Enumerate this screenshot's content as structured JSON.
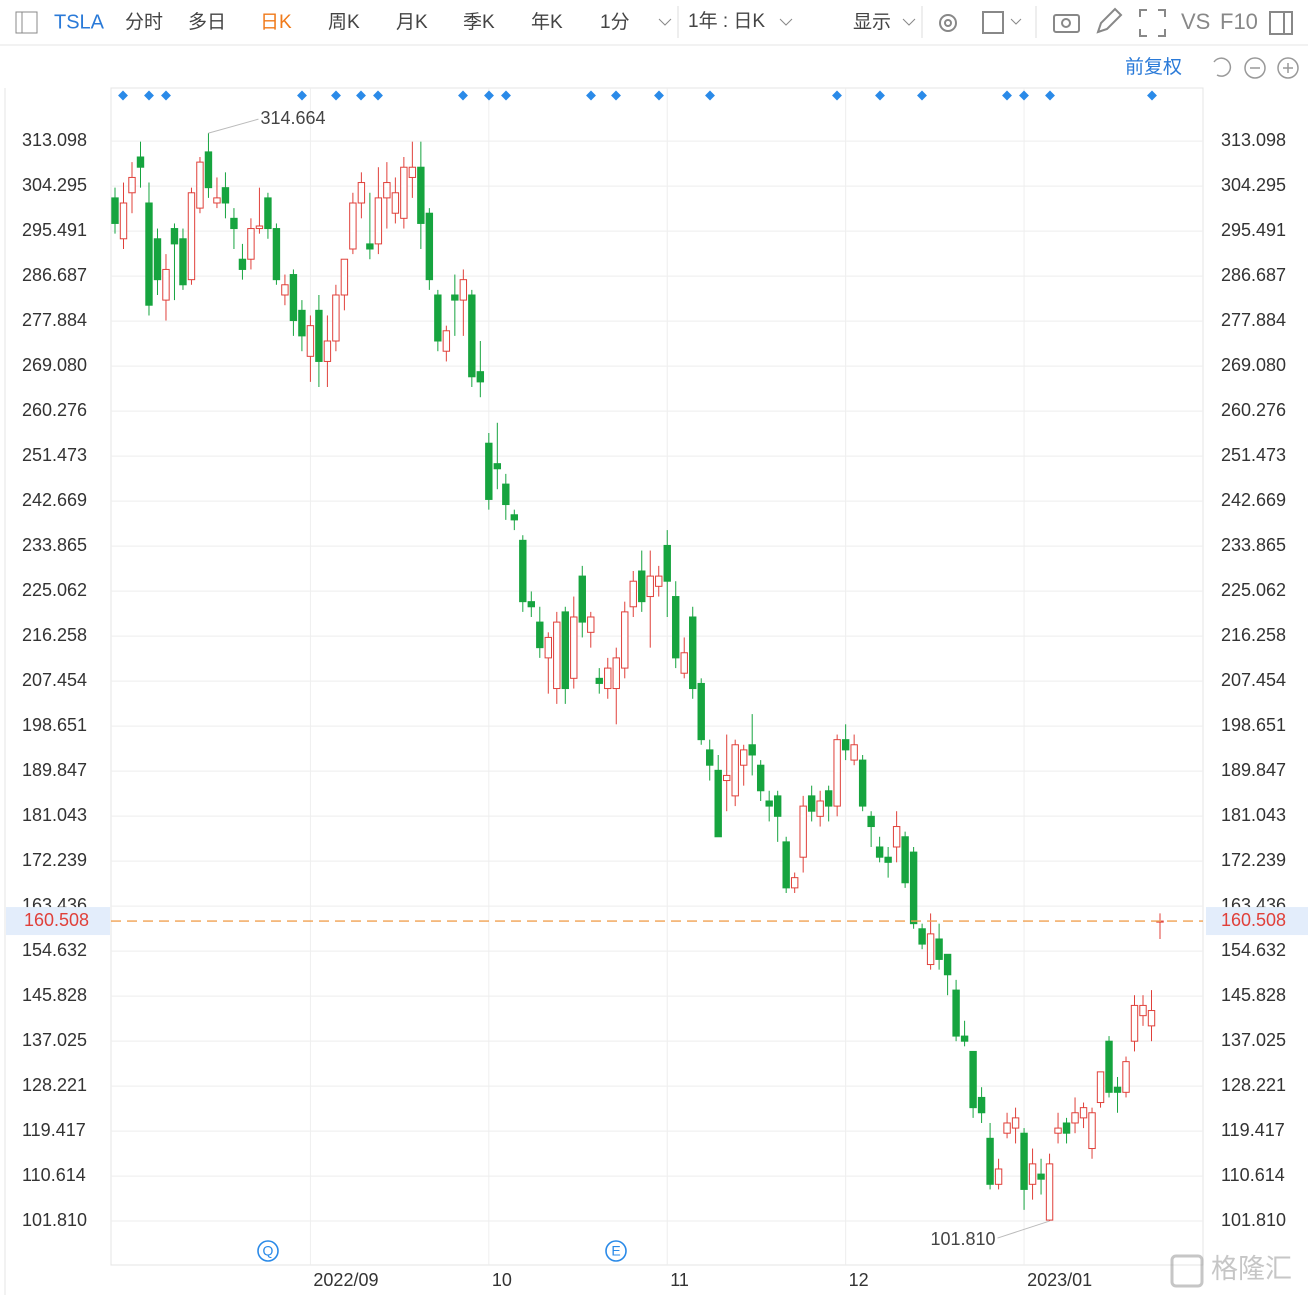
{
  "toolbar": {
    "symbol": "TSLA",
    "periods": [
      "分时",
      "多日",
      "日K",
      "周K",
      "月K",
      "季K",
      "年K"
    ],
    "active_period": "日K",
    "interval": "1分",
    "range": "1年 : 日K",
    "display": "显示",
    "vs": "VS",
    "f10": "F10"
  },
  "adjust": "前复权",
  "watermark": "格隆汇",
  "chart_data": {
    "type": "candlestick",
    "categories": [
      null,
      null,
      null,
      null,
      null,
      null,
      null,
      null,
      null,
      null,
      null,
      null,
      null,
      null,
      null,
      null,
      null,
      null,
      null,
      null,
      null,
      null,
      null,
      "2022/09",
      null,
      null,
      null,
      null,
      null,
      null,
      null,
      null,
      null,
      null,
      null,
      null,
      null,
      null,
      null,
      null,
      null,
      null,
      null,
      null,
      "10",
      null,
      null,
      null,
      null,
      null,
      null,
      null,
      null,
      null,
      null,
      null,
      null,
      null,
      null,
      null,
      null,
      null,
      null,
      null,
      null,
      "11",
      null,
      null,
      null,
      null,
      null,
      null,
      null,
      null,
      null,
      null,
      null,
      null,
      null,
      null,
      null,
      null,
      null,
      null,
      null,
      null,
      "12",
      null,
      null,
      null,
      null,
      null,
      null,
      null,
      null,
      null,
      null,
      null,
      null,
      null,
      null,
      null,
      null,
      null,
      null,
      null,
      null,
      "2023/01",
      null,
      null,
      null,
      null,
      null,
      null,
      null,
      null,
      null,
      null,
      null,
      null,
      null,
      null,
      null,
      null
    ],
    "open": [
      302,
      294,
      303,
      310,
      301,
      294,
      282,
      296,
      294,
      286,
      300,
      311,
      301,
      304,
      298,
      290,
      290,
      296,
      302,
      296,
      283,
      287,
      280,
      271,
      280,
      270,
      274,
      283,
      292,
      301,
      293,
      293,
      302,
      299,
      298,
      306,
      308,
      299,
      283,
      272,
      283,
      282,
      283,
      268,
      254,
      250,
      246,
      240,
      235,
      223,
      219,
      212,
      206,
      221,
      208,
      228,
      217,
      208,
      206,
      206,
      210,
      222,
      229,
      224,
      226,
      234,
      224,
      209,
      220,
      207,
      194,
      190,
      188,
      185,
      191,
      195,
      191,
      184,
      185,
      176,
      167,
      173,
      185,
      181,
      186,
      183,
      196,
      192,
      192,
      181,
      175,
      173,
      175,
      177,
      174,
      159,
      152,
      157,
      154,
      147,
      138,
      135,
      126,
      118,
      109,
      119,
      120,
      119,
      109,
      111,
      102,
      119,
      121,
      121,
      122,
      116,
      125,
      137,
      128,
      127,
      137,
      142,
      140,
      160.3
    ],
    "high": [
      304,
      305,
      309,
      313,
      305,
      296,
      291,
      297,
      296,
      304,
      310,
      314.664,
      306,
      307,
      300,
      293,
      298,
      304,
      303,
      297,
      287,
      288,
      282,
      279,
      283,
      279,
      285,
      290,
      303,
      307,
      303,
      308,
      309,
      306,
      310,
      313,
      313,
      300,
      284,
      277,
      287,
      288,
      284,
      274,
      256,
      258,
      248,
      241,
      236,
      225,
      222,
      217,
      221,
      222,
      224,
      230,
      221,
      210,
      212,
      214,
      223,
      229,
      233,
      233,
      230,
      237,
      227,
      216,
      222,
      208,
      196,
      193,
      197,
      196,
      195,
      201,
      192,
      186,
      186,
      177,
      170,
      185,
      187,
      186,
      187,
      197,
      199,
      197,
      193,
      182,
      177,
      175,
      182,
      178,
      175,
      160,
      162,
      160,
      154,
      149,
      141,
      135,
      128,
      121,
      114,
      123,
      124,
      120,
      116,
      114,
      115,
      123,
      122,
      126,
      125,
      124,
      131,
      138,
      130,
      134,
      146,
      146,
      147,
      162
    ],
    "low": [
      295,
      292,
      299,
      304,
      279,
      283,
      278,
      282,
      284,
      285,
      299,
      302,
      300,
      298,
      292,
      286,
      288,
      295,
      294,
      285,
      281,
      275,
      272,
      266,
      265,
      265,
      272,
      280,
      291,
      298,
      290,
      291,
      296,
      297,
      296,
      302,
      292,
      284,
      272,
      270,
      275,
      275,
      265,
      263,
      241,
      245,
      239,
      237,
      221,
      220,
      212,
      205,
      203,
      203,
      206,
      216,
      214,
      205,
      204,
      199,
      208,
      220,
      221,
      214,
      224,
      220,
      210,
      208,
      204,
      195,
      188,
      177,
      182,
      183,
      187,
      189,
      184,
      180,
      176,
      166,
      166,
      170,
      180,
      179,
      180,
      181,
      192,
      191,
      182,
      175,
      172,
      169,
      172,
      167,
      159,
      155,
      151,
      151,
      146,
      137,
      136,
      122,
      121,
      108,
      108,
      118,
      117,
      104,
      106,
      107,
      101.81,
      117,
      117,
      119,
      120,
      114,
      124,
      126,
      123,
      126,
      135,
      140,
      137,
      157
    ],
    "close": [
      297,
      301,
      306,
      308,
      281,
      286,
      288,
      293,
      285,
      303,
      309,
      304,
      302,
      301,
      296,
      288,
      296,
      296.5,
      296,
      286,
      285,
      278,
      275,
      277,
      270,
      274,
      283,
      290,
      301,
      305,
      292,
      302,
      305,
      303,
      308,
      308,
      297,
      286,
      274,
      276,
      282,
      286,
      267,
      266,
      243,
      249,
      242,
      239,
      223,
      222,
      214,
      216,
      219,
      206,
      220,
      219,
      220,
      207,
      210,
      212,
      221,
      227,
      223,
      228,
      228,
      227,
      212,
      213,
      206,
      196,
      191,
      177,
      189,
      195,
      194,
      193,
      186,
      183,
      181,
      167,
      169,
      183,
      182,
      184,
      183,
      196,
      194,
      195,
      183,
      179,
      173,
      172,
      179,
      168,
      160,
      156,
      158,
      153,
      150,
      138,
      137,
      124,
      123,
      109,
      112,
      121,
      122,
      108,
      113,
      110,
      113,
      120,
      119,
      123,
      124,
      123,
      131,
      127,
      127,
      133,
      144,
      144,
      143,
      160.508
    ],
    "up_color": "#e0403a",
    "down_color": "#16a43f",
    "ylim": [
      93.8,
      323.5
    ],
    "yticks": [
      313.098,
      304.295,
      295.491,
      286.687,
      277.884,
      {
        "value": 269.08,
        "label": "269.080"
      },
      260.276,
      251.473,
      242.669,
      233.865,
      225.062,
      216.258,
      207.454,
      198.651,
      189.847,
      181.043,
      172.239,
      163.436,
      154.632,
      145.828,
      137.025,
      128.221,
      119.417,
      110.614,
      {
        "value": 101.81,
        "label": "101.810"
      }
    ],
    "grid": true,
    "last_price": 160.508,
    "extremes": {
      "max": 314.664,
      "min": {
        "value": 101.81,
        "label": "101.810"
      }
    },
    "event_icons": [
      "Q",
      "E"
    ]
  }
}
